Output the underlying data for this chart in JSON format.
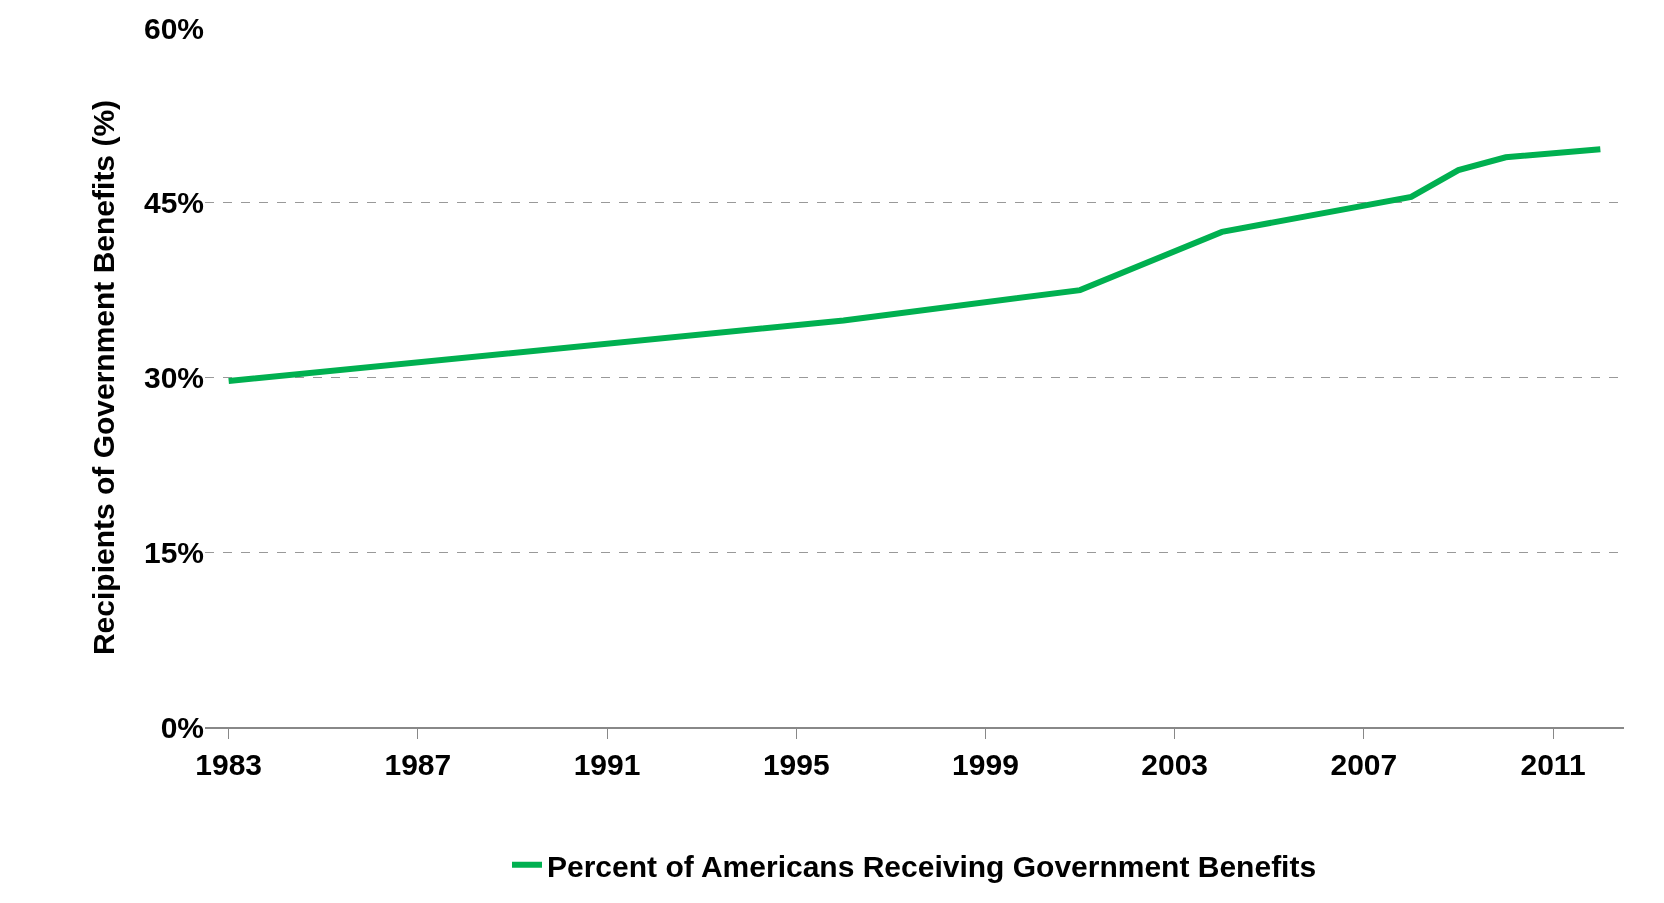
{
  "chart_data": {
    "type": "line",
    "ylabel": "Recipients of Government Benefits (%)",
    "x": [
      1983,
      1996,
      2001,
      2004,
      2008,
      2009,
      2010,
      2012
    ],
    "series": [
      {
        "name": "Percent of Americans Receiving Government Benefits",
        "color": "#00b050",
        "values": [
          29.7,
          34.9,
          37.5,
          42.5,
          45.5,
          47.8,
          48.9,
          49.6
        ]
      }
    ],
    "xlim": [
      1982.5,
      2012.5
    ],
    "xticks": [
      1983,
      1987,
      1991,
      1995,
      1999,
      2003,
      2007,
      2011
    ],
    "ylim": [
      0,
      60
    ],
    "yticks": [
      {
        "value": 0,
        "label": "0%"
      },
      {
        "value": 15,
        "label": "15%"
      },
      {
        "value": 30,
        "label": "30%"
      },
      {
        "value": 45,
        "label": "45%"
      },
      {
        "value": 60,
        "label": "60%"
      }
    ],
    "grid": "y",
    "legend": "bottom",
    "marker": "none",
    "line_style": "solid"
  }
}
